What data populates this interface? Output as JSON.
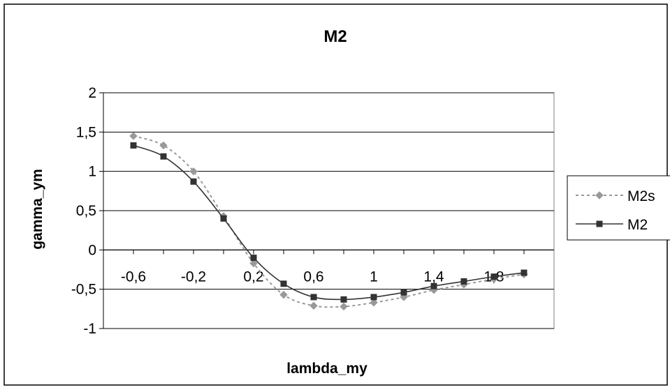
{
  "chart_data": {
    "type": "line",
    "title": "M2",
    "xlabel": "lambda_my",
    "ylabel": "gamma_ym",
    "xlim": [
      -0.8,
      2.2
    ],
    "ylim": [
      -1,
      2
    ],
    "x_ticks": [
      -0.6,
      -0.2,
      0.2,
      0.6,
      1,
      1.4,
      1.8
    ],
    "x_tick_labels": [
      "-0,6",
      "-0,2",
      "0,2",
      "0,6",
      "1",
      "1,4",
      "1,8"
    ],
    "y_ticks": [
      2,
      1.5,
      1,
      0.5,
      0,
      -0.5,
      -1
    ],
    "y_tick_labels": [
      "2",
      "1,5",
      "1",
      "0,5",
      "0",
      "-0,5",
      "-1"
    ],
    "grid": "horizontal",
    "legend_position": "right",
    "series": [
      {
        "name": "M2s",
        "color": "#999999",
        "style": "dotted",
        "marker": "diamond",
        "x": [
          -0.6,
          -0.4,
          -0.2,
          0.0,
          0.2,
          0.4,
          0.6,
          0.8,
          1.0,
          1.2,
          1.4,
          1.6,
          1.8,
          2.0
        ],
        "y": [
          1.45,
          1.33,
          1.0,
          0.43,
          -0.17,
          -0.57,
          -0.71,
          -0.72,
          -0.67,
          -0.6,
          -0.51,
          -0.44,
          -0.37,
          -0.31
        ]
      },
      {
        "name": "M2",
        "color": "#333333",
        "style": "solid",
        "marker": "square",
        "x": [
          -0.6,
          -0.4,
          -0.2,
          0.0,
          0.2,
          0.4,
          0.6,
          0.8,
          1.0,
          1.2,
          1.4,
          1.6,
          1.8,
          2.0
        ],
        "y": [
          1.33,
          1.19,
          0.87,
          0.4,
          -0.1,
          -0.43,
          -0.6,
          -0.63,
          -0.6,
          -0.54,
          -0.46,
          -0.4,
          -0.34,
          -0.29
        ]
      }
    ]
  }
}
